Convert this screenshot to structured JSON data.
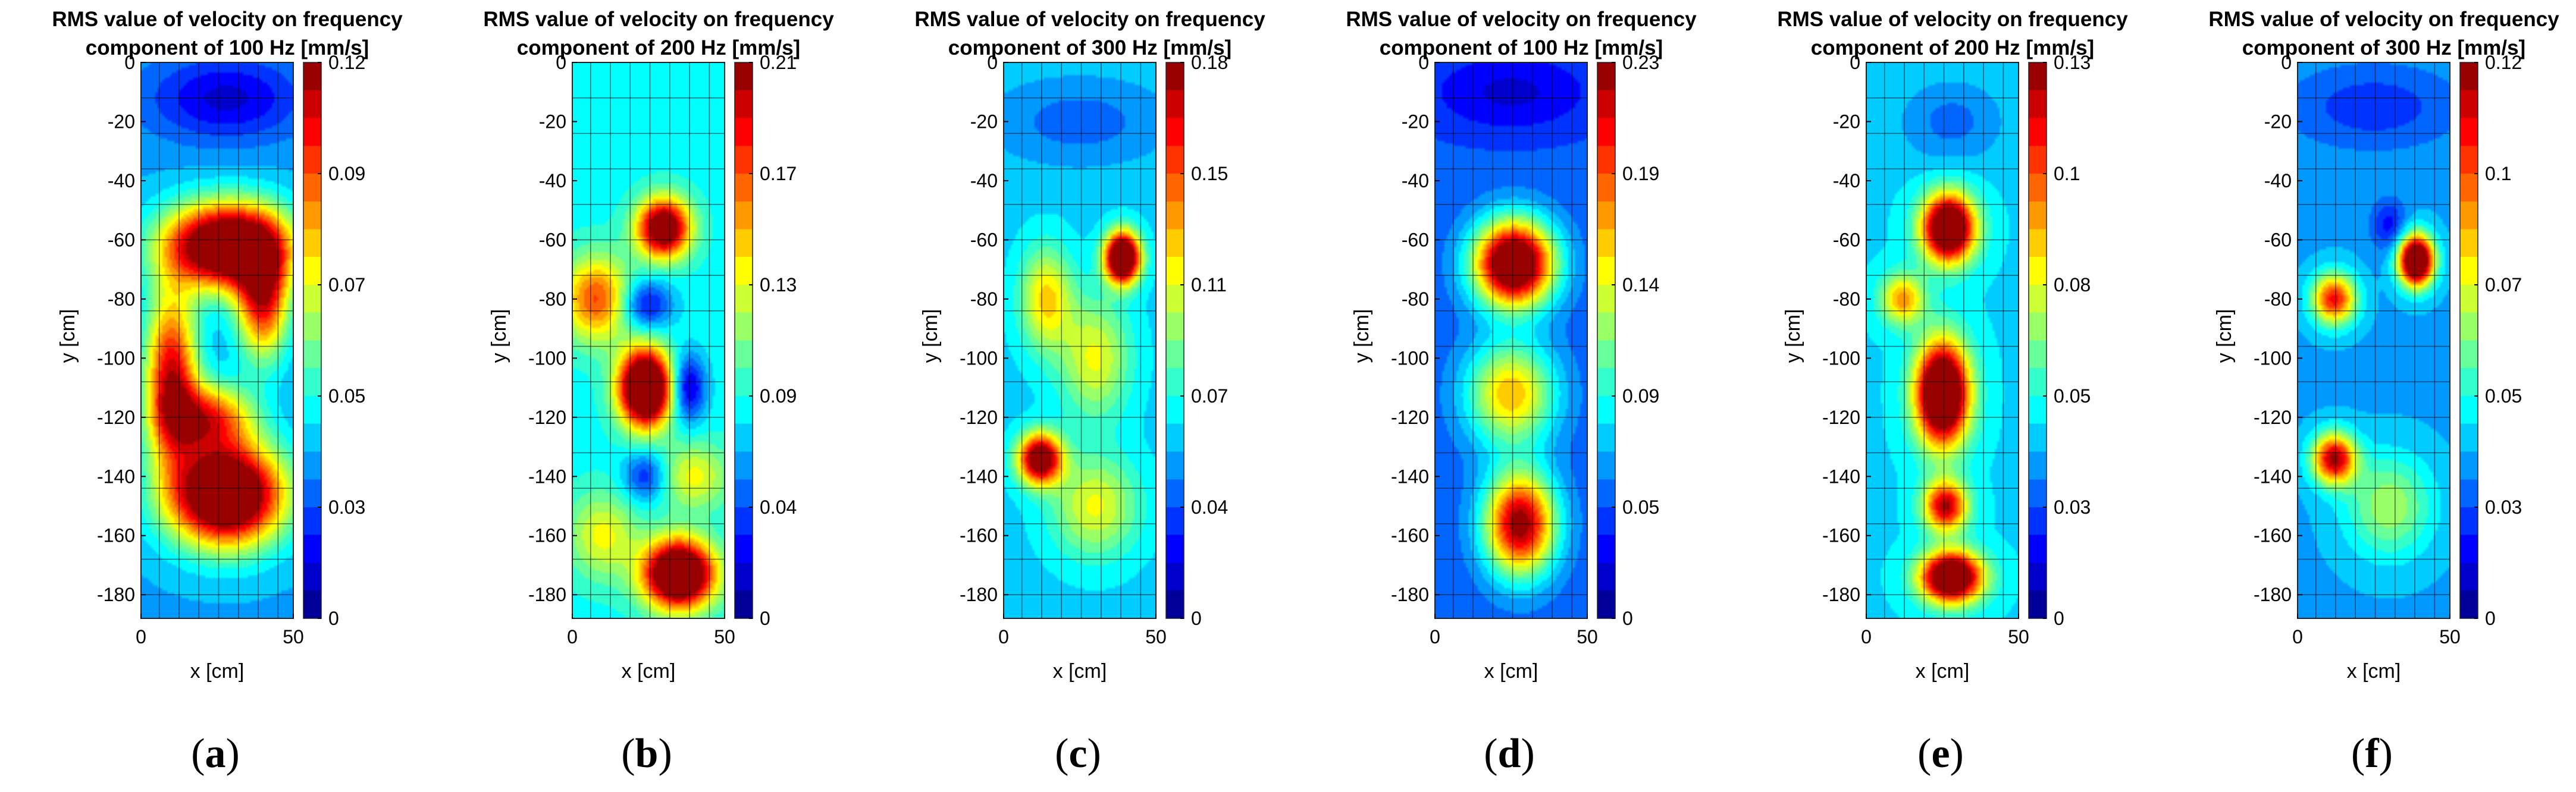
{
  "chart_data": [
    {
      "type": "heatmap",
      "label": "a",
      "title_line1": "RMS value of velocity on frequency",
      "title_line2": "component of 100 Hz [mm/s]",
      "xlabel": "x [cm]",
      "ylabel": "y [cm]",
      "xlim": [
        0,
        50
      ],
      "ylim": [
        -188,
        0
      ],
      "xticks": [
        "0",
        "50"
      ],
      "yticks": [
        "0",
        "-20",
        "-40",
        "-60",
        "-80",
        "-100",
        "-120",
        "-140",
        "-160",
        "-180"
      ],
      "colorbar_ticks": [
        "0.12",
        "0.09",
        "0.07",
        "0.05",
        "0.03",
        "0"
      ],
      "vmax": 0.12,
      "background_level": 0.035,
      "peaks": [
        {
          "x": 28,
          "y": -62,
          "value": 0.115,
          "sx": 14,
          "sy": 10
        },
        {
          "x": 28,
          "y": -146,
          "value": 0.12,
          "sx": 13,
          "sy": 12
        },
        {
          "x": 10,
          "y": -106,
          "value": 0.075,
          "sx": 6,
          "sy": 20
        },
        {
          "x": 40,
          "y": -80,
          "value": 0.07,
          "sx": 6,
          "sy": 14
        },
        {
          "x": 22,
          "y": -120,
          "value": 0.06,
          "sx": 10,
          "sy": 8
        },
        {
          "x": 28,
          "y": -12,
          "value": -0.025,
          "sx": 18,
          "sy": 10
        }
      ]
    },
    {
      "type": "heatmap",
      "label": "b",
      "title_line1": "RMS value of velocity on frequency",
      "title_line2": "component of 200 Hz [mm/s]",
      "xlabel": "x [cm]",
      "ylabel": "y [cm]",
      "xlim": [
        0,
        50
      ],
      "ylim": [
        -188,
        0
      ],
      "xticks": [
        "0",
        "50"
      ],
      "yticks": [
        "0",
        "-20",
        "-40",
        "-60",
        "-80",
        "-100",
        "-120",
        "-140",
        "-160",
        "-180"
      ],
      "colorbar_ticks": [
        "0.21",
        "0.17",
        "0.13",
        "0.09",
        "0.04",
        "0"
      ],
      "vmax": 0.21,
      "background_level": 0.08,
      "peaks": [
        {
          "x": 24,
          "y": -110,
          "value": 0.21,
          "sx": 6,
          "sy": 9
        },
        {
          "x": 35,
          "y": -173,
          "value": 0.2,
          "sx": 8,
          "sy": 8
        },
        {
          "x": 30,
          "y": -56,
          "value": 0.16,
          "sx": 6,
          "sy": 7
        },
        {
          "x": 8,
          "y": -80,
          "value": 0.09,
          "sx": 8,
          "sy": 10
        },
        {
          "x": 38,
          "y": -110,
          "value": -0.07,
          "sx": 4,
          "sy": 8
        },
        {
          "x": 24,
          "y": -82,
          "value": -0.06,
          "sx": 6,
          "sy": 6
        },
        {
          "x": 24,
          "y": -140,
          "value": -0.05,
          "sx": 5,
          "sy": 6
        },
        {
          "x": 40,
          "y": -140,
          "value": 0.05,
          "sx": 8,
          "sy": 8
        },
        {
          "x": 10,
          "y": -160,
          "value": 0.05,
          "sx": 8,
          "sy": 10
        }
      ]
    },
    {
      "type": "heatmap",
      "label": "c",
      "title_line1": "RMS value of velocity on frequency",
      "title_line2": "component of 300 Hz [mm/s]",
      "xlabel": "x [cm]",
      "ylabel": "y [cm]",
      "xlim": [
        0,
        50
      ],
      "ylim": [
        -188,
        0
      ],
      "xticks": [
        "0",
        "50"
      ],
      "yticks": [
        "0",
        "-20",
        "-40",
        "-60",
        "-80",
        "-100",
        "-120",
        "-140",
        "-160",
        "-180"
      ],
      "colorbar_ticks": [
        "0.18",
        "0.15",
        "0.11",
        "0.07",
        "0.04",
        "0"
      ],
      "vmax": 0.18,
      "background_level": 0.06,
      "peaks": [
        {
          "x": 39,
          "y": -66,
          "value": 0.18,
          "sx": 4,
          "sy": 6
        },
        {
          "x": 12,
          "y": -134,
          "value": 0.14,
          "sx": 5,
          "sy": 6
        },
        {
          "x": 14,
          "y": -80,
          "value": 0.06,
          "sx": 6,
          "sy": 12
        },
        {
          "x": 30,
          "y": -100,
          "value": 0.05,
          "sx": 8,
          "sy": 14
        },
        {
          "x": 30,
          "y": -150,
          "value": 0.05,
          "sx": 10,
          "sy": 12
        },
        {
          "x": 25,
          "y": -20,
          "value": -0.02,
          "sx": 20,
          "sy": 10
        }
      ]
    },
    {
      "type": "heatmap",
      "label": "d",
      "title_line1": "RMS value of velocity on frequency",
      "title_line2": "component of 100 Hz [mm/s]",
      "xlabel": "x [cm]",
      "ylabel": "y [cm]",
      "xlim": [
        0,
        50
      ],
      "ylim": [
        -188,
        0
      ],
      "xticks": [
        "0",
        "50"
      ],
      "yticks": [
        "0",
        "-20",
        "-40",
        "-60",
        "-80",
        "-100",
        "-120",
        "-140",
        "-160",
        "-180"
      ],
      "colorbar_ticks": [
        "0.23",
        "0.19",
        "0.14",
        "0.09",
        "0.05",
        "0"
      ],
      "vmax": 0.23,
      "background_level": 0.05,
      "peaks": [
        {
          "x": 26,
          "y": -68,
          "value": 0.23,
          "sx": 9,
          "sy": 10
        },
        {
          "x": 28,
          "y": -156,
          "value": 0.18,
          "sx": 8,
          "sy": 12
        },
        {
          "x": 25,
          "y": -112,
          "value": 0.11,
          "sx": 10,
          "sy": 12
        },
        {
          "x": 25,
          "y": -10,
          "value": -0.03,
          "sx": 20,
          "sy": 10
        }
      ]
    },
    {
      "type": "heatmap",
      "label": "e",
      "title_line1": "RMS value of velocity on frequency",
      "title_line2": "component of 200 Hz [mm/s]",
      "xlabel": "x [cm]",
      "ylabel": "y [cm]",
      "xlim": [
        0,
        50
      ],
      "ylim": [
        -188,
        0
      ],
      "xticks": [
        "0",
        "50"
      ],
      "yticks": [
        "0",
        "-20",
        "-40",
        "-60",
        "-80",
        "-100",
        "-120",
        "-140",
        "-160",
        "-180"
      ],
      "colorbar_ticks": [
        "0.13",
        "0.1",
        "0.08",
        "0.05",
        "0.03",
        "0"
      ],
      "vmax": 0.13,
      "background_level": 0.045,
      "peaks": [
        {
          "x": 25,
          "y": -112,
          "value": 0.13,
          "sx": 6,
          "sy": 12
        },
        {
          "x": 27,
          "y": -56,
          "value": 0.12,
          "sx": 6,
          "sy": 8
        },
        {
          "x": 28,
          "y": -174,
          "value": 0.12,
          "sx": 7,
          "sy": 6
        },
        {
          "x": 26,
          "y": -150,
          "value": 0.08,
          "sx": 5,
          "sy": 6
        },
        {
          "x": 12,
          "y": -80,
          "value": 0.05,
          "sx": 5,
          "sy": 6
        },
        {
          "x": 28,
          "y": -20,
          "value": -0.015,
          "sx": 12,
          "sy": 10
        }
      ]
    },
    {
      "type": "heatmap",
      "label": "f",
      "title_line1": "RMS value of velocity on frequency",
      "title_line2": "component of 300 Hz [mm/s]",
      "xlabel": "x [cm]",
      "ylabel": "y [cm]",
      "xlim": [
        0,
        50
      ],
      "ylim": [
        -188,
        0
      ],
      "xticks": [
        "0",
        "50"
      ],
      "yticks": [
        "0",
        "-20",
        "-40",
        "-60",
        "-80",
        "-100",
        "-120",
        "-140",
        "-160",
        "-180"
      ],
      "colorbar_ticks": [
        "0.12",
        "0.1",
        "0.07",
        "0.05",
        "0.03",
        "0"
      ],
      "vmax": 0.12,
      "background_level": 0.035,
      "peaks": [
        {
          "x": 39,
          "y": -67,
          "value": 0.12,
          "sx": 4,
          "sy": 6
        },
        {
          "x": 12,
          "y": -134,
          "value": 0.08,
          "sx": 5,
          "sy": 6
        },
        {
          "x": 12,
          "y": -80,
          "value": 0.07,
          "sx": 5,
          "sy": 6
        },
        {
          "x": 30,
          "y": -55,
          "value": -0.02,
          "sx": 4,
          "sy": 6
        },
        {
          "x": 30,
          "y": -150,
          "value": 0.03,
          "sx": 10,
          "sy": 12
        },
        {
          "x": 25,
          "y": -15,
          "value": -0.015,
          "sx": 20,
          "sy": 10
        }
      ]
    }
  ]
}
